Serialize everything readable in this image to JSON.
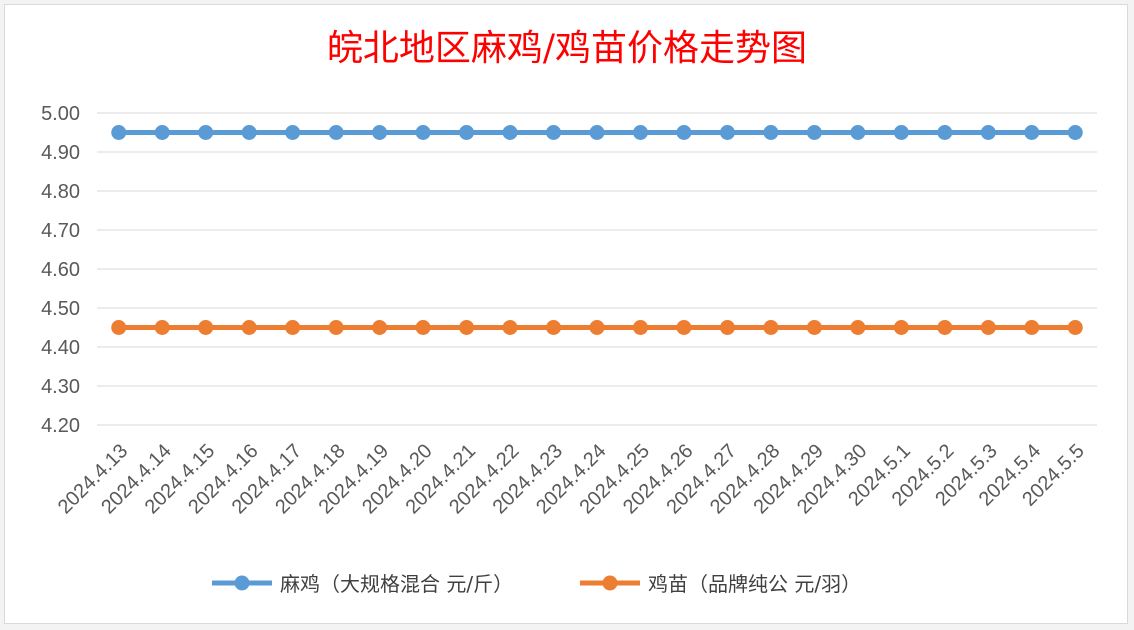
{
  "chart_data": {
    "type": "line",
    "title": "皖北地区麻鸡/鸡苗价格走势图",
    "xlabel": "",
    "ylabel": "",
    "categories": [
      "2024.4.13",
      "2024.4.14",
      "2024.4.15",
      "2024.4.16",
      "2024.4.17",
      "2024.4.18",
      "2024.4.19",
      "2024.4.20",
      "2024.4.21",
      "2024.4.22",
      "2024.4.23",
      "2024.4.24",
      "2024.4.25",
      "2024.4.26",
      "2024.4.27",
      "2024.4.28",
      "2024.4.29",
      "2024.4.30",
      "2024.5.1",
      "2024.5.2",
      "2024.5.3",
      "2024.5.4",
      "2024.5.5"
    ],
    "yticks": [
      "4.20",
      "4.30",
      "4.40",
      "4.50",
      "4.60",
      "4.70",
      "4.80",
      "4.90",
      "5.00"
    ],
    "ylim": [
      4.2,
      5.0
    ],
    "grid": true,
    "legend_position": "bottom",
    "series": [
      {
        "name": "麻鸡（大规格混合 元/斤）",
        "color": "#5b9bd5",
        "values": [
          4.95,
          4.95,
          4.95,
          4.95,
          4.95,
          4.95,
          4.95,
          4.95,
          4.95,
          4.95,
          4.95,
          4.95,
          4.95,
          4.95,
          4.95,
          4.95,
          4.95,
          4.95,
          4.95,
          4.95,
          4.95,
          4.95,
          4.95
        ]
      },
      {
        "name": "鸡苗（品牌纯公 元/羽）",
        "color": "#ed7d31",
        "values": [
          4.45,
          4.45,
          4.45,
          4.45,
          4.45,
          4.45,
          4.45,
          4.45,
          4.45,
          4.45,
          4.45,
          4.45,
          4.45,
          4.45,
          4.45,
          4.45,
          4.45,
          4.45,
          4.45,
          4.45,
          4.45,
          4.45,
          4.45
        ]
      }
    ],
    "title_color": "#ff0000"
  }
}
